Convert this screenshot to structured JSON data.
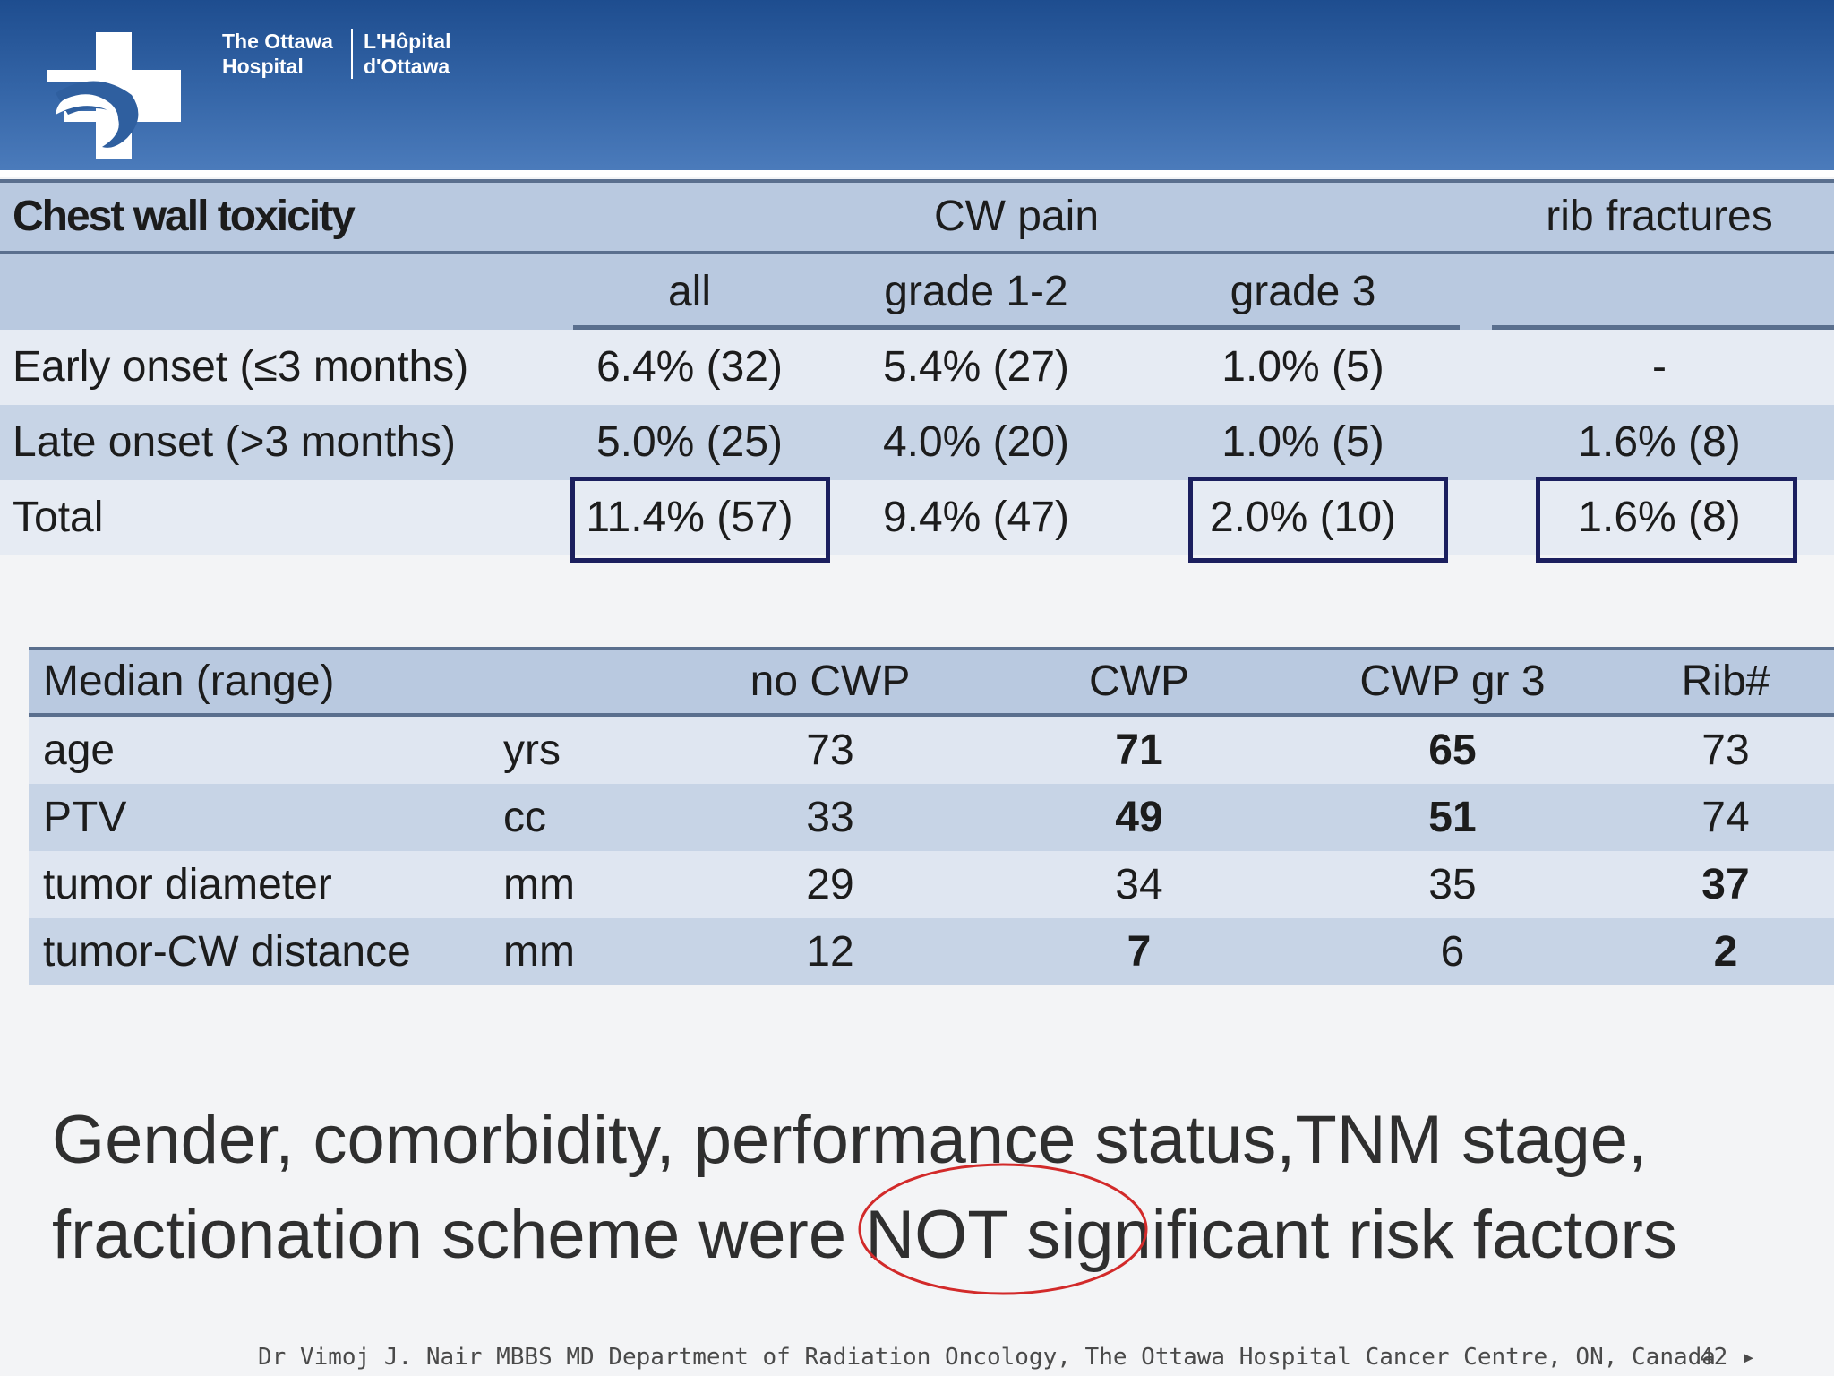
{
  "header": {
    "brand_en_line1": "The Ottawa",
    "brand_en_line2": "Hospital",
    "brand_fr_line1": "L'Hôpital",
    "brand_fr_line2": "d'Ottawa",
    "logo_icon": "ottawa-hospital-cross-logo",
    "colors": {
      "header_top": "#1e4d8f",
      "header_bottom": "#4b7bbb"
    }
  },
  "toxicity_table": {
    "title": "Chest wall toxicity",
    "group_cw_pain": "CW pain",
    "group_rib": "rib fractures",
    "sub_all": "all",
    "sub_g12": "grade 1-2",
    "sub_g3": "grade 3",
    "rows": [
      {
        "label": "Early onset (≤3 months)",
        "all": "6.4% (32)",
        "g12": "5.4% (27)",
        "g3": "1.0% (5)",
        "rib": "-"
      },
      {
        "label": "Late onset (>3 months)",
        "all": "5.0% (25)",
        "g12": "4.0% (20)",
        "g3": "1.0% (5)",
        "rib": "1.6% (8)"
      },
      {
        "label": "Total",
        "all": "11.4% (57)",
        "g12": "9.4% (47)",
        "g3": "2.0% (10)",
        "rib": "1.6% (8)"
      }
    ]
  },
  "median_table": {
    "title": "Median (range)",
    "cols": [
      "no CWP",
      "CWP",
      "CWP gr 3",
      "Rib#"
    ],
    "rows": [
      {
        "label": "age",
        "unit": "yrs",
        "values": [
          "73",
          "71",
          "65",
          "73"
        ]
      },
      {
        "label": "PTV",
        "unit": "cc",
        "values": [
          "33",
          "49",
          "51",
          "74"
        ]
      },
      {
        "label": "tumor diameter",
        "unit": "mm",
        "values": [
          "29",
          "34",
          "35",
          "37"
        ]
      },
      {
        "label": "tumor-CW distance",
        "unit": "mm",
        "values": [
          "12",
          "7",
          "6",
          "2"
        ]
      }
    ]
  },
  "statement": {
    "line1": "Gender, comorbidity, performance status,TNM stage,",
    "line2": "fractionation scheme were NOT significant risk factors"
  },
  "footer": {
    "credit": "Dr Vimoj J. Nair MBBS MD Department of Radiation Oncology, The Ottawa Hospital Cancer Centre, ON, Canada",
    "page": "42 ▸"
  }
}
